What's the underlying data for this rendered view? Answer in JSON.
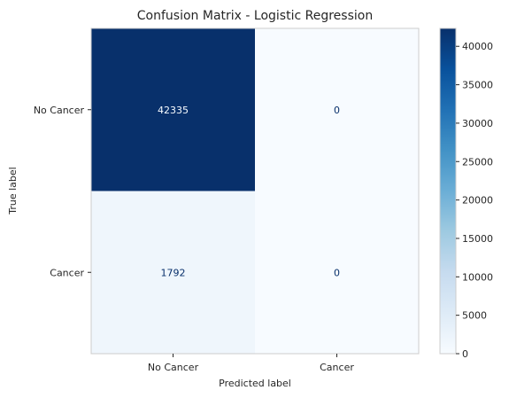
{
  "chart_data": {
    "type": "heatmap",
    "title": "Confusion Matrix - Logistic Regression",
    "xlabel": "Predicted label",
    "ylabel": "True label",
    "x_categories": [
      "No Cancer",
      "Cancer"
    ],
    "y_categories": [
      "No Cancer",
      "Cancer"
    ],
    "values": [
      [
        42335,
        0
      ],
      [
        1792,
        0
      ]
    ],
    "colormap": "Blues",
    "colorbar": {
      "min": 0,
      "max": 42335,
      "ticks": [
        0,
        5000,
        10000,
        15000,
        20000,
        25000,
        30000,
        35000,
        40000
      ]
    },
    "grid": false
  },
  "colors": {
    "blues_low": "#f7fbff",
    "blues_high": "#08306b",
    "text_on_dark": "#f7fbff",
    "text_on_light": "#08306b",
    "axis_frame": "#cccccc",
    "label_text": "#262626"
  }
}
